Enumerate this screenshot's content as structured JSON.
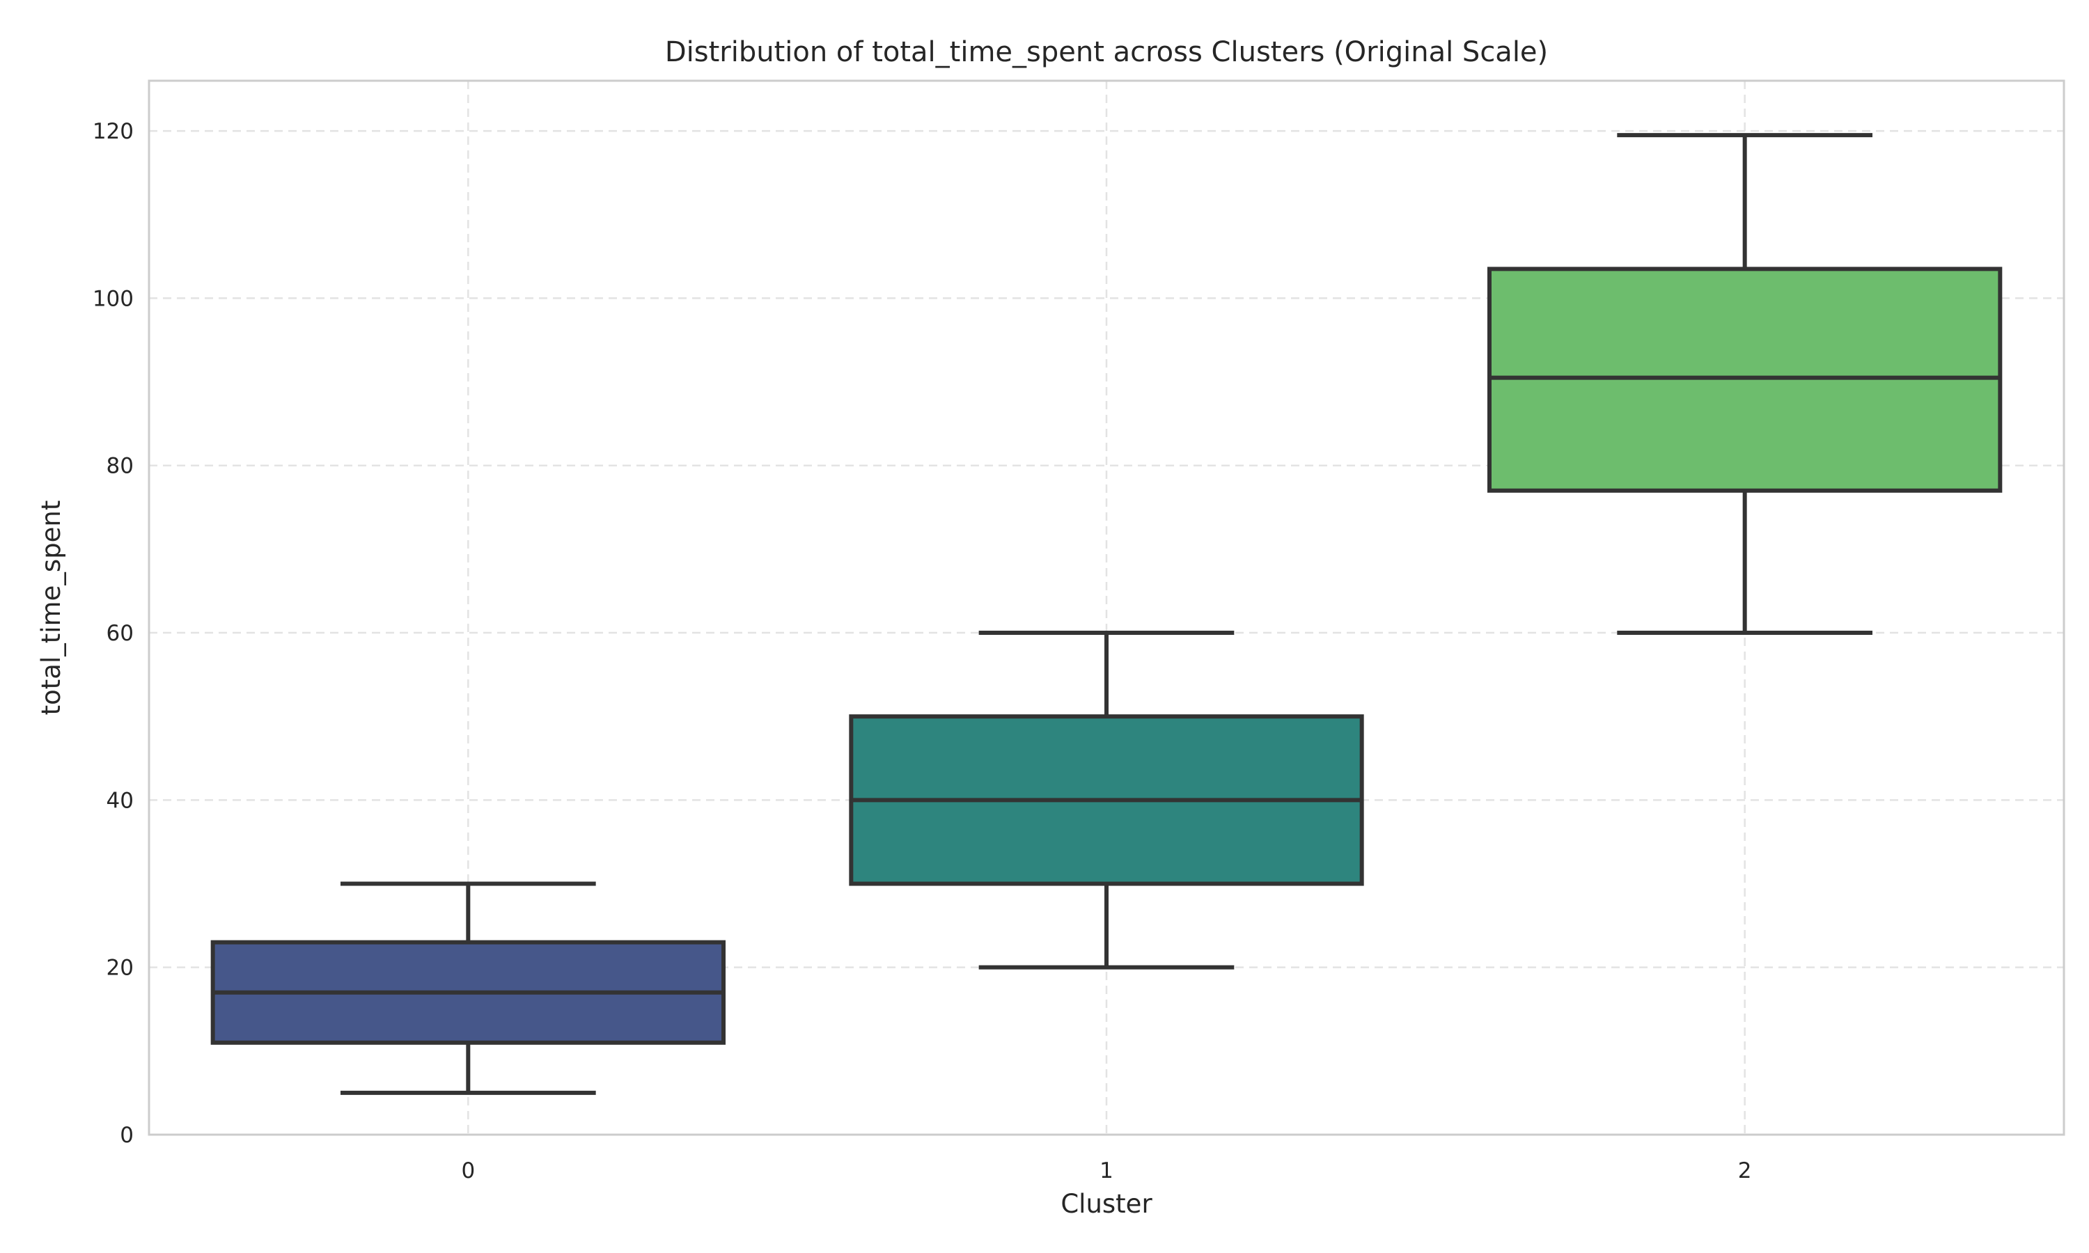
{
  "chart_data": {
    "type": "box",
    "title": "Distribution of total_time_spent across Clusters (Original Scale)",
    "xlabel": "Cluster",
    "ylabel": "total_time_spent",
    "categories": [
      "0",
      "1",
      "2"
    ],
    "ylim": [
      0,
      126
    ],
    "yticks": [
      0,
      20,
      40,
      60,
      80,
      100,
      120
    ],
    "grid": true,
    "colors": [
      "#46578a",
      "#2e857e",
      "#6dbd6d"
    ],
    "series": [
      {
        "category": "0",
        "min": 5,
        "q1": 11,
        "median": 17,
        "q3": 23,
        "max": 30
      },
      {
        "category": "1",
        "min": 20,
        "q1": 30,
        "median": 40,
        "q3": 50,
        "max": 60
      },
      {
        "category": "2",
        "min": 60,
        "q1": 77,
        "median": 90.5,
        "q3": 103.5,
        "max": 119.5
      }
    ]
  }
}
